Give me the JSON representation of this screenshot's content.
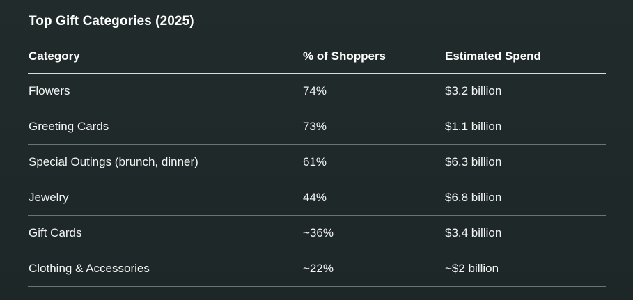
{
  "title": "Top Gift Categories (2025)",
  "table": {
    "headers": [
      "Category",
      "% of Shoppers",
      "Estimated Spend"
    ],
    "rows": [
      {
        "category": "Flowers",
        "shoppers": "74%",
        "spend": "$3.2 billion"
      },
      {
        "category": "Greeting Cards",
        "shoppers": "73%",
        "spend": "$1.1 billion"
      },
      {
        "category": "Special Outings (brunch, dinner)",
        "shoppers": "61%",
        "spend": "$6.3 billion"
      },
      {
        "category": "Jewelry",
        "shoppers": "44%",
        "spend": "$6.8 billion"
      },
      {
        "category": "Gift Cards",
        "shoppers": "~36%",
        "spend": "$3.4 billion"
      },
      {
        "category": "Clothing & Accessories",
        "shoppers": "~22%",
        "spend": "~$2 billion"
      }
    ]
  },
  "colors": {
    "background": "#1f2828",
    "text": "#ffffff",
    "header_rule": "#d9dcdb",
    "row_rule": "#6b7472"
  }
}
